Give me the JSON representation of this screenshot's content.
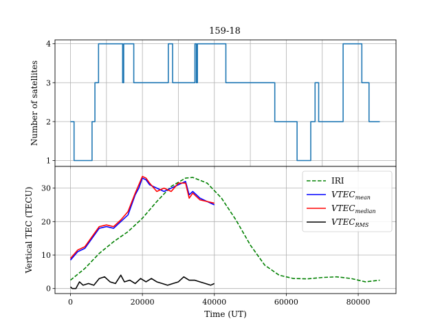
{
  "chart_data": [
    {
      "type": "line",
      "title": "159-18",
      "xlabel": "",
      "ylabel": "Number of satellites",
      "xlim": [
        -4300,
        90500
      ],
      "ylim": [
        0.85,
        4.1
      ],
      "yticks": [
        1,
        2,
        3,
        4
      ],
      "grid": true,
      "series": [
        {
          "name": "",
          "color": "#1f77b4",
          "step": true,
          "x": [
            0,
            1000,
            6000,
            6800,
            7800,
            14500,
            14800,
            15200,
            17600,
            26000,
            27200,
            28400,
            34600,
            35000,
            35300,
            40500,
            43200,
            52300,
            56800,
            61800,
            63000,
            66800,
            68000,
            69000,
            75000,
            75800,
            78000,
            81000,
            83000,
            86000
          ],
          "values": [
            2,
            1,
            2,
            3,
            4,
            3,
            4,
            4,
            3,
            3,
            4,
            3,
            4,
            3,
            4,
            4,
            3,
            3,
            2,
            2,
            1,
            2,
            3,
            2,
            2,
            4,
            4,
            3,
            2,
            2
          ]
        }
      ]
    },
    {
      "type": "line",
      "xlabel": "Time (UT)",
      "ylabel": "Vertical TEC (TECU)",
      "xlim": [
        -4300,
        90500
      ],
      "ylim": [
        -1.5,
        36.5
      ],
      "xticks": [
        0,
        20000,
        40000,
        60000,
        80000
      ],
      "yticks": [
        0,
        10,
        20,
        30
      ],
      "grid": true,
      "legend_position": "top-right",
      "series": [
        {
          "name": "IRI",
          "color": "#008000",
          "dashed": true,
          "x": [
            0,
            4000,
            8000,
            12000,
            16000,
            20000,
            24000,
            28000,
            32000,
            34000,
            38000,
            42000,
            46000,
            50000,
            54000,
            58000,
            62000,
            66000,
            70000,
            74000,
            78000,
            82000,
            86000
          ],
          "values": [
            2.5,
            6,
            10.5,
            14,
            17,
            21,
            26,
            30.5,
            33,
            33.2,
            31.5,
            27,
            20.5,
            13,
            7,
            4,
            3,
            2.9,
            3.3,
            3.5,
            3,
            2,
            2.5
          ]
        },
        {
          "name": "VTEC_mean",
          "color": "#0000ff",
          "x": [
            0,
            2000,
            4000,
            6000,
            8000,
            10000,
            12000,
            14000,
            16000,
            18000,
            19000,
            20000,
            21000,
            22000,
            24000,
            26000,
            28000,
            30000,
            32000,
            33000,
            34000,
            36000,
            38000,
            40000
          ],
          "values": [
            8.5,
            11,
            12,
            15,
            18,
            18.5,
            18,
            20,
            22,
            28,
            30,
            33,
            32.5,
            31,
            30,
            29,
            30,
            31,
            32,
            28,
            29,
            27,
            26,
            25
          ]
        },
        {
          "name": "VTEC_median",
          "color": "#ff0000",
          "x": [
            0,
            2000,
            4000,
            6000,
            8000,
            10000,
            12000,
            14000,
            16000,
            18000,
            19000,
            20000,
            21000,
            22000,
            24000,
            26000,
            28000,
            30000,
            32000,
            33000,
            34000,
            36000,
            38000,
            40000
          ],
          "values": [
            9,
            11.5,
            12.5,
            15.5,
            18.5,
            19,
            18.5,
            20.5,
            23,
            28.5,
            31,
            33.5,
            33,
            31.5,
            29,
            30,
            29,
            31.5,
            31.5,
            27,
            28.5,
            26.5,
            26,
            25.5
          ]
        },
        {
          "name": "VTEC_RMS",
          "color": "#000000",
          "x": [
            0,
            500,
            1500,
            2500,
            3500,
            5000,
            6500,
            8000,
            9500,
            11000,
            12500,
            14000,
            15000,
            16500,
            18000,
            19500,
            21000,
            22500,
            24000,
            25500,
            27000,
            28500,
            30000,
            31500,
            33000,
            34500,
            36000,
            37500,
            39000,
            40000
          ],
          "values": [
            0.5,
            0,
            0,
            2,
            1,
            1.5,
            1,
            3,
            3.5,
            2,
            1.5,
            4,
            2,
            2.5,
            1.5,
            3,
            2,
            3,
            2,
            1.5,
            1,
            1.5,
            2,
            3.5,
            2.5,
            2.5,
            2,
            1.5,
            1,
            1.5
          ]
        }
      ]
    }
  ]
}
